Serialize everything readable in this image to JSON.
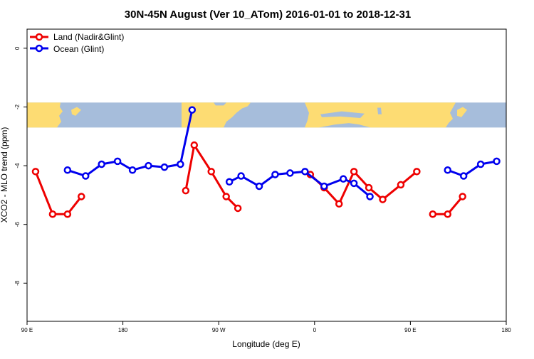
{
  "chart_data": {
    "type": "line",
    "title": "30N-45N August (Ver 10_ATom)   2016-01-01 to 2018-12-31",
    "xlabel": "Longitude (deg E)",
    "ylabel": "XCO2 - MLO trend (ppm)",
    "xlim": [
      90,
      540
    ],
    "ylim": [
      -9.3,
      0.65
    ],
    "xticks": [
      {
        "value": 90,
        "label": "90 E"
      },
      {
        "value": 180,
        "label": "180"
      },
      {
        "value": 270,
        "label": "90 W"
      },
      {
        "value": 360,
        "label": "0"
      },
      {
        "value": 450,
        "label": "90 E"
      },
      {
        "value": 540,
        "label": "180"
      }
    ],
    "yticks": [
      {
        "value": 0,
        "label": "0"
      },
      {
        "value": -2,
        "label": "-2"
      },
      {
        "value": -4,
        "label": "-4"
      },
      {
        "value": -6,
        "label": "-6"
      },
      {
        "value": -8,
        "label": "-8"
      }
    ],
    "grid": false,
    "legend_position": "top-left",
    "map_strip": {
      "y_top": -1.85,
      "y_bottom": -2.7,
      "ocean_color": "#a6bddb",
      "land_color": "#fddc73"
    },
    "series": [
      {
        "name": "Land (Nadir&Glint)",
        "color": "#ee0000",
        "segments": [
          [
            [
              98,
              -4.2
            ],
            [
              114,
              -5.65
            ],
            [
              128,
              -5.65
            ],
            [
              141,
              -5.05
            ]
          ],
          [
            [
              239,
              -4.85
            ],
            [
              247,
              -3.3
            ],
            [
              263,
              -4.2
            ],
            [
              277,
              -5.05
            ],
            [
              288,
              -5.45
            ]
          ],
          [
            [
              356,
              -4.3
            ],
            [
              369,
              -4.75
            ],
            [
              383,
              -5.3
            ],
            [
              397,
              -4.2
            ],
            [
              411,
              -4.75
            ],
            [
              424,
              -5.15
            ],
            [
              441,
              -4.65
            ],
            [
              456,
              -4.2
            ]
          ],
          [
            [
              471,
              -5.65
            ],
            [
              485,
              -5.65
            ],
            [
              499,
              -5.05
            ]
          ]
        ]
      },
      {
        "name": "Ocean (Glint)",
        "color": "#0000ee",
        "segments": [
          [
            [
              128,
              -4.15
            ],
            [
              145,
              -4.35
            ],
            [
              160,
              -3.95
            ],
            [
              175,
              -3.85
            ],
            [
              189,
              -4.15
            ],
            [
              204,
              -4.0
            ],
            [
              219,
              -4.05
            ],
            [
              234,
              -3.95
            ],
            [
              245,
              -2.1
            ]
          ],
          [
            [
              280,
              -4.55
            ],
            [
              291,
              -4.35
            ],
            [
              308,
              -4.7
            ],
            [
              323,
              -4.3
            ],
            [
              337,
              -4.25
            ],
            [
              351,
              -4.2
            ],
            [
              369,
              -4.7
            ],
            [
              387,
              -4.45
            ],
            [
              397,
              -4.6
            ],
            [
              412,
              -5.05
            ]
          ],
          [
            [
              485,
              -4.15
            ],
            [
              500,
              -4.35
            ],
            [
              516,
              -3.95
            ],
            [
              531,
              -3.85
            ]
          ]
        ]
      }
    ]
  }
}
